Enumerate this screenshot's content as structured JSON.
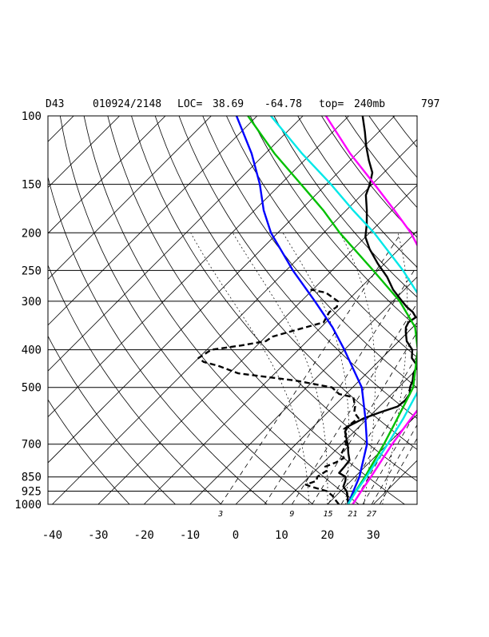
{
  "header": {
    "station": "D43",
    "datetime": "010924/2148",
    "loc_label": "LOC=",
    "lat": "38.69",
    "lon": "-64.78",
    "top_label": "top=",
    "top_value": "240mb",
    "id": "797"
  },
  "chart_data": {
    "type": "line",
    "title": "",
    "xlabel": "",
    "ylabel": "",
    "y_scale": "log-pressure",
    "xlim": [
      -40,
      40
    ],
    "ylim": [
      1000,
      100
    ],
    "grid": true,
    "pressure_ticks": [
      100,
      150,
      200,
      250,
      300,
      400,
      500,
      700,
      850,
      925,
      1000
    ],
    "temperature_ticks": [
      -40,
      -30,
      -20,
      -10,
      0,
      10,
      20,
      30
    ],
    "mixing_ratio_labels": [
      "3",
      "9",
      "15",
      "21",
      "27"
    ],
    "series": [
      {
        "color": "#000000",
        "dash": "solid",
        "points": [
          [
            1000,
            24.5
          ],
          [
            950,
            22.5
          ],
          [
            925,
            21.3
          ],
          [
            900,
            19.6
          ],
          [
            870,
            18.8
          ],
          [
            850,
            18.0
          ],
          [
            830,
            15.7
          ],
          [
            800,
            15.5
          ],
          [
            770,
            15.2
          ],
          [
            740,
            13.5
          ],
          [
            700,
            11.3
          ],
          [
            680,
            10.0
          ],
          [
            650,
            8.0
          ],
          [
            630,
            7.5
          ],
          [
            600,
            9.2
          ],
          [
            580,
            11.4
          ],
          [
            560,
            14.0
          ],
          [
            540,
            14.3
          ],
          [
            520,
            13.9
          ],
          [
            500,
            12.5
          ],
          [
            480,
            11.6
          ],
          [
            460,
            10.2
          ],
          [
            440,
            9.4
          ],
          [
            420,
            6.5
          ],
          [
            400,
            4.8
          ],
          [
            380,
            1.7
          ],
          [
            360,
            -0.5
          ],
          [
            350,
            -1.5
          ],
          [
            340,
            -2.0
          ],
          [
            330,
            -1.5
          ],
          [
            320,
            -3.3
          ],
          [
            310,
            -5.8
          ],
          [
            300,
            -8.0
          ],
          [
            280,
            -12.5
          ],
          [
            260,
            -16.5
          ],
          [
            240,
            -21.5
          ],
          [
            220,
            -26.5
          ],
          [
            205,
            -30.0
          ],
          [
            190,
            -32.5
          ],
          [
            175,
            -35.5
          ],
          [
            160,
            -39.0
          ],
          [
            150,
            -40.5
          ],
          [
            140,
            -42.5
          ],
          [
            130,
            -46.0
          ],
          [
            120,
            -49.5
          ],
          [
            110,
            -53.0
          ],
          [
            100,
            -57.0
          ]
        ]
      },
      {
        "color": "#000000",
        "dash": "dashed",
        "points": [
          [
            1000,
            22.5
          ],
          [
            970,
            20.5
          ],
          [
            950,
            19.2
          ],
          [
            925,
            17.0
          ],
          [
            900,
            12.5
          ],
          [
            890,
            11.0
          ],
          [
            870,
            12.5
          ],
          [
            850,
            11.8
          ],
          [
            820,
            12.5
          ],
          [
            800,
            11.3
          ],
          [
            780,
            12.7
          ],
          [
            760,
            13.5
          ],
          [
            740,
            12.0
          ],
          [
            720,
            11.5
          ],
          [
            700,
            11.0
          ],
          [
            680,
            9.5
          ],
          [
            660,
            8.8
          ],
          [
            640,
            7.2
          ],
          [
            600,
            8.0
          ],
          [
            580,
            5.8
          ],
          [
            560,
            4.7
          ],
          [
            530,
            2.3
          ],
          [
            520,
            -1.5
          ],
          [
            500,
            -4.5
          ],
          [
            480,
            -14.0
          ],
          [
            460,
            -28.0
          ],
          [
            440,
            -34.0
          ],
          [
            430,
            -38.0
          ],
          [
            420,
            -40.0
          ],
          [
            400,
            -39.0
          ],
          [
            390,
            -33.5
          ],
          [
            380,
            -29.0
          ],
          [
            370,
            -28.5
          ],
          [
            360,
            -26.0
          ],
          [
            340,
            -20.5
          ],
          [
            320,
            -21.5
          ],
          [
            310,
            -21.0
          ],
          [
            300,
            -22.0
          ],
          [
            285,
            -26.5
          ],
          [
            280,
            -30.5
          ]
        ]
      },
      {
        "color": "#0000ff",
        "dash": "solid",
        "points": [
          [
            1000,
            24.5
          ],
          [
            925,
            22.8
          ],
          [
            850,
            21.0
          ],
          [
            700,
            15.5
          ],
          [
            600,
            9.5
          ],
          [
            500,
            2.0
          ],
          [
            400,
            -10.0
          ],
          [
            350,
            -17.5
          ],
          [
            300,
            -27.0
          ],
          [
            250,
            -38.5
          ],
          [
            200,
            -51.5
          ],
          [
            175,
            -58.0
          ],
          [
            150,
            -64.5
          ],
          [
            125,
            -73.0
          ],
          [
            100,
            -84.5
          ]
        ]
      },
      {
        "color": "#00c000",
        "dash": "solid",
        "points": [
          [
            1000,
            24.5
          ],
          [
            925,
            23.3
          ],
          [
            850,
            22.2
          ],
          [
            700,
            19.2
          ],
          [
            600,
            16.5
          ],
          [
            500,
            13.2
          ],
          [
            400,
            6.0
          ],
          [
            350,
            0.5
          ],
          [
            300,
            -8.5
          ],
          [
            250,
            -21.0
          ],
          [
            200,
            -36.5
          ],
          [
            175,
            -45.0
          ],
          [
            150,
            -55.5
          ],
          [
            125,
            -68.0
          ],
          [
            100,
            -82.0
          ]
        ]
      },
      {
        "color": "#00e8e8",
        "dash": "solid",
        "points": [
          [
            1000,
            24.5
          ],
          [
            925,
            23.4
          ],
          [
            850,
            22.5
          ],
          [
            700,
            20.0
          ],
          [
            600,
            17.8
          ],
          [
            500,
            14.7
          ],
          [
            400,
            8.8
          ],
          [
            350,
            4.5
          ],
          [
            300,
            -3.5
          ],
          [
            250,
            -14.5
          ],
          [
            200,
            -29.0
          ],
          [
            175,
            -38.5
          ],
          [
            150,
            -49.0
          ],
          [
            125,
            -62.0
          ],
          [
            100,
            -77.0
          ]
        ]
      },
      {
        "color": "#ff00ff",
        "dash": "solid",
        "points": [
          [
            1000,
            25.5
          ],
          [
            925,
            24.5
          ],
          [
            850,
            23.5
          ],
          [
            700,
            21.0
          ],
          [
            600,
            19.5
          ],
          [
            550,
            18.8
          ],
          [
            500,
            17.5
          ],
          [
            400,
            11.8
          ],
          [
            350,
            7.5
          ],
          [
            300,
            1.0
          ],
          [
            250,
            -8.5
          ],
          [
            200,
            -21.0
          ],
          [
            175,
            -29.5
          ],
          [
            150,
            -39.5
          ],
          [
            125,
            -51.5
          ],
          [
            100,
            -65.0
          ]
        ]
      }
    ]
  }
}
